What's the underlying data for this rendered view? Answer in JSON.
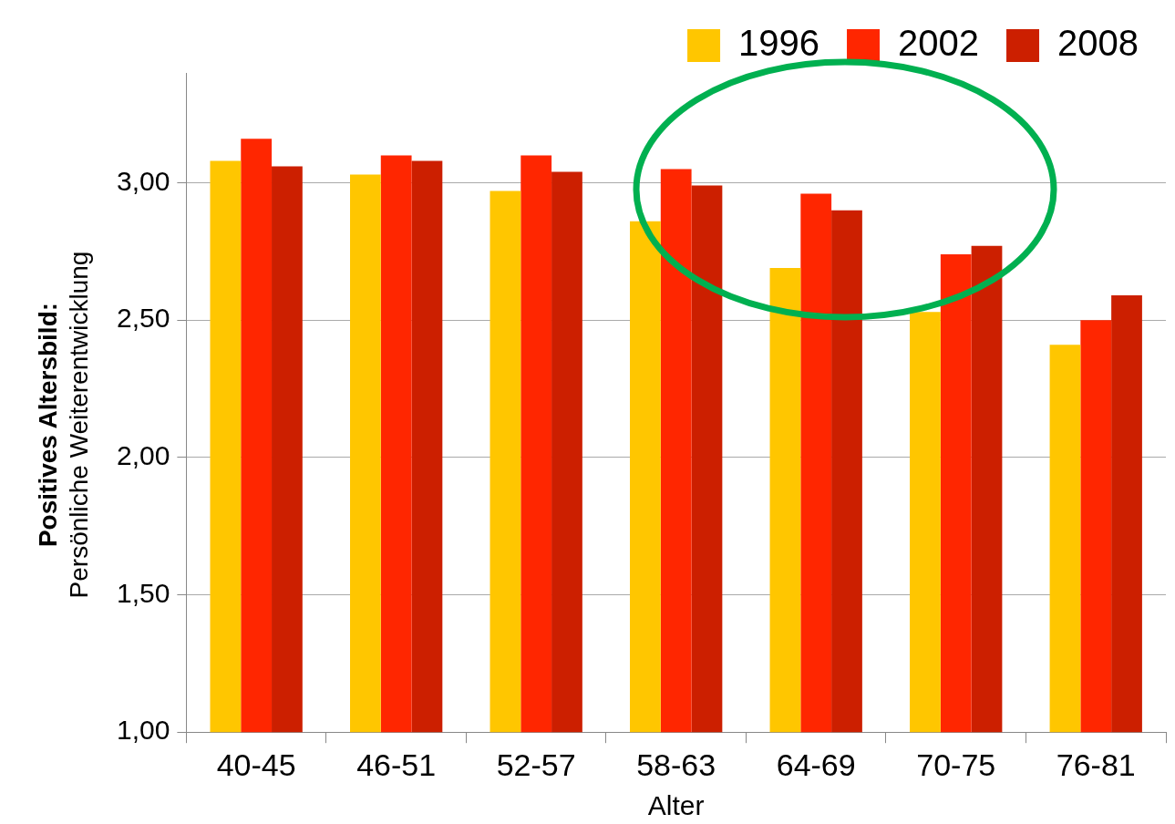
{
  "chart_data": {
    "type": "bar",
    "xlabel": "Alter",
    "ylabel": "Positives Altersbild:\nPersönliche Weiterentwicklung",
    "categories": [
      "40-45",
      "46-51",
      "52-57",
      "58-63",
      "64-69",
      "70-75",
      "76-81"
    ],
    "series": [
      {
        "name": "1996",
        "color": "#ffc600",
        "values": [
          3.08,
          3.03,
          2.97,
          2.86,
          2.69,
          2.53,
          2.41
        ]
      },
      {
        "name": "2002",
        "color": "#ff2600",
        "values": [
          3.16,
          3.1,
          3.1,
          3.05,
          2.96,
          2.74,
          2.5
        ]
      },
      {
        "name": "2008",
        "color": "#cc1f00",
        "values": [
          3.06,
          3.08,
          3.04,
          2.99,
          2.9,
          2.77,
          2.59
        ]
      }
    ],
    "ylim": [
      1,
      3.4
    ],
    "yticks": [
      {
        "value": 1,
        "label": "1,00"
      },
      {
        "value": 1.5,
        "label": "1,50"
      },
      {
        "value": 2,
        "label": "2,00"
      },
      {
        "value": 2.5,
        "label": "2,50"
      },
      {
        "value": 3,
        "label": "3,00"
      }
    ],
    "grid": "y",
    "legend": "top right"
  }
}
